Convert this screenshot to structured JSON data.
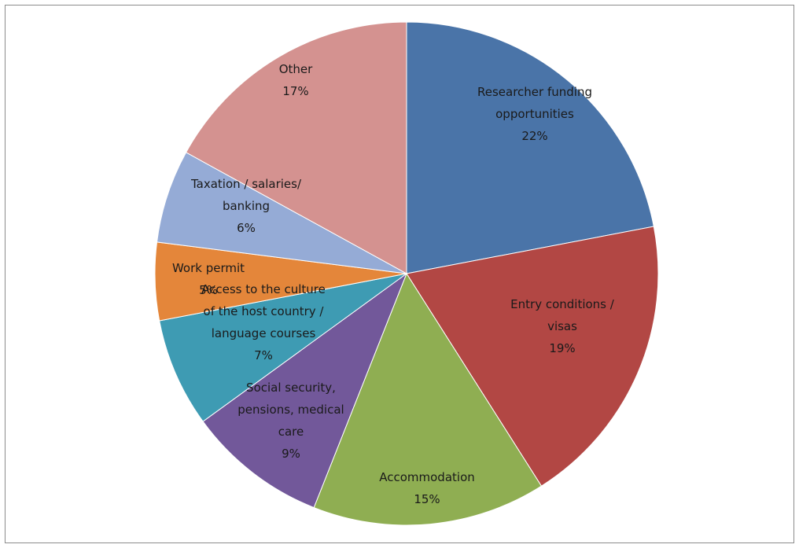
{
  "chart_data": {
    "type": "pie",
    "title": "",
    "start": "12 o'clock",
    "direction": "clockwise",
    "slices": [
      {
        "label": [
          "Researcher funding",
          "opportunities"
        ],
        "value": 22,
        "pct": "22%",
        "color": "#4a74a8"
      },
      {
        "label": [
          "Entry conditions /",
          "visas"
        ],
        "value": 19,
        "pct": "19%",
        "color": "#b24744"
      },
      {
        "label": [
          "Accommodation"
        ],
        "value": 15,
        "pct": "15%",
        "color": "#8fae52"
      },
      {
        "label": [
          "Social security,",
          "pensions, medical",
          "care"
        ],
        "value": 9,
        "pct": "9%",
        "color": "#72589a"
      },
      {
        "label": [
          "Access to the culture",
          "of the host country /",
          "language courses"
        ],
        "value": 7,
        "pct": "7%",
        "color": "#3e9bb3"
      },
      {
        "label": [
          "Work permit"
        ],
        "value": 5,
        "pct": "5%",
        "color": "#e4863a"
      },
      {
        "label": [
          "Taxation / salaries/",
          "banking"
        ],
        "value": 6,
        "pct": "6%",
        "color": "#95abd6"
      },
      {
        "label": [
          "Other"
        ],
        "value": 17,
        "pct": "17%",
        "color": "#d49290"
      }
    ]
  }
}
